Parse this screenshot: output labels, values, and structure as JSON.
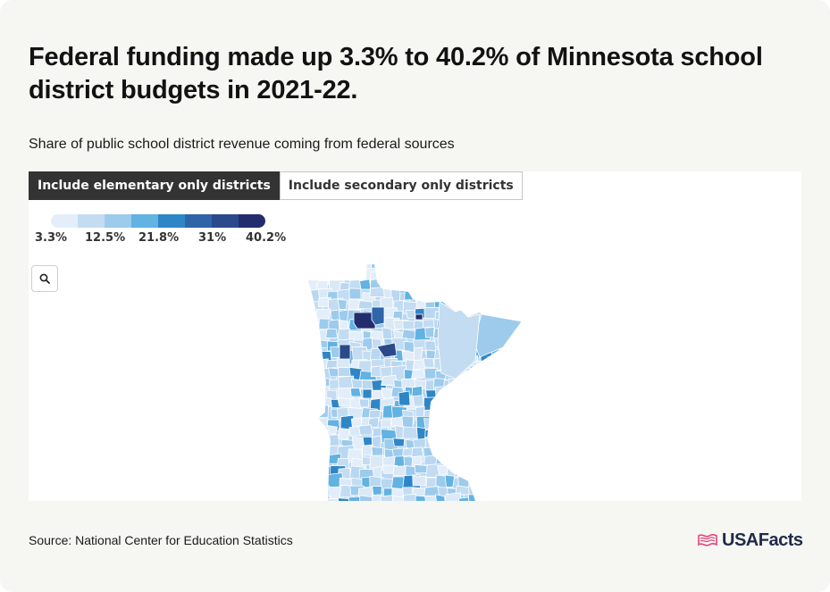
{
  "title": "Federal funding made up 3.3% to 40.2% of Minnesota school district budgets in 2021-22.",
  "subtitle": "Share of public school district revenue coming from federal sources",
  "tabs": [
    {
      "label": "Include elementary only districts",
      "active": true
    },
    {
      "label": "Include secondary only districts",
      "active": false
    }
  ],
  "legend": {
    "colors": [
      "#e3eefa",
      "#c3dcf2",
      "#9ccbec",
      "#62b2e2",
      "#2f86c6",
      "#2f64a8",
      "#2b4a8c",
      "#232d6e"
    ],
    "labels": [
      "3.3%",
      "12.5%",
      "21.8%",
      "31%",
      "40.2%"
    ]
  },
  "zoom": {
    "icon": "search-icon"
  },
  "source": "Source: National Center for Education Statistics",
  "brand": {
    "name": "USAFacts",
    "icon": "flag-logo-icon",
    "accent": "#e0457b"
  }
}
